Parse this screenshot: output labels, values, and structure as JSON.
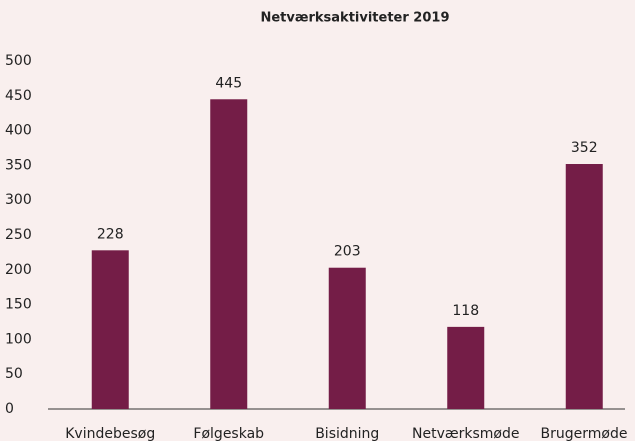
{
  "chart_data": {
    "type": "bar",
    "title": "Netværksaktiviteter 2019",
    "categories": [
      "Kvindebesøg",
      "Følgeskab",
      "Bisidning",
      "Netværksmøde",
      "Brugermøde"
    ],
    "values": [
      228,
      445,
      203,
      118,
      352
    ],
    "color": "#741d47",
    "ylim": [
      0,
      500
    ],
    "yticks": [
      0,
      50,
      100,
      150,
      200,
      250,
      300,
      350,
      400,
      450,
      500
    ],
    "grid": false
  }
}
